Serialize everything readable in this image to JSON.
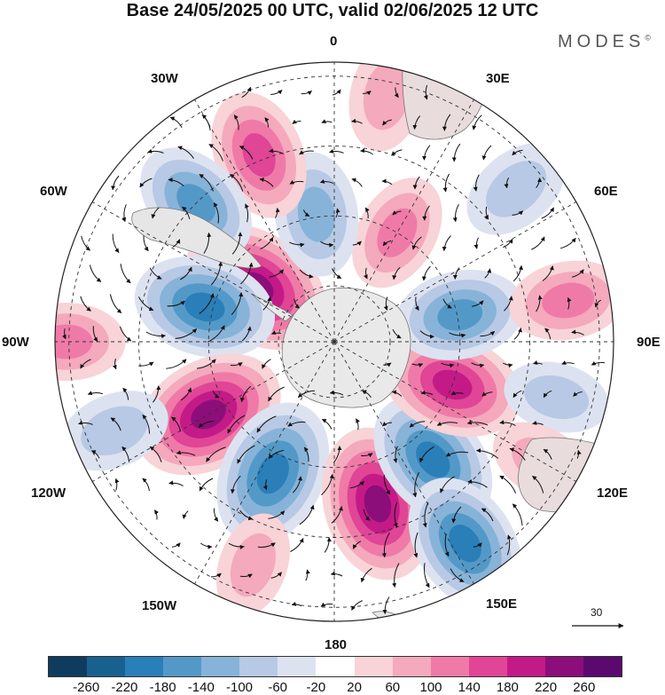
{
  "title": "Base 24/05/2025 00 UTC, valid 02/06/2025 12 UTC",
  "brand": "MODES",
  "brand_mark": "©",
  "meridian_labels": {
    "m0": "0",
    "m30e": "30E",
    "m60e": "60E",
    "m90e": "90E",
    "m120e": "120E",
    "m150e": "150E",
    "m180": "180",
    "m150w": "150W",
    "m120w": "120W",
    "m90w": "90W",
    "m60w": "60W",
    "m30w": "30W"
  },
  "vector_scale_label": "30",
  "colorbar": {
    "colors": [
      "#0f3b5f",
      "#18618f",
      "#2a7fb8",
      "#5399c8",
      "#87b3d8",
      "#b7c9e4",
      "#dde2f1",
      "#ffffff",
      "#f8d3d8",
      "#f4a9bc",
      "#ef7aa8",
      "#e04596",
      "#c31a87",
      "#8c0e7b",
      "#5a0a6e"
    ],
    "ticks": [
      "-260",
      "-220",
      "-180",
      "-140",
      "-100",
      "-60",
      "-20",
      "20",
      "60",
      "100",
      "140",
      "180",
      "220",
      "260"
    ]
  },
  "anomaly_centers": [
    {
      "value": 220,
      "bearing": 305,
      "dist": 0.34
    },
    {
      "value": -180,
      "bearing": 285,
      "dist": 0.48
    },
    {
      "value": 220,
      "bearing": 240,
      "dist": 0.52
    },
    {
      "value": -200,
      "bearing": 205,
      "dist": 0.52
    },
    {
      "value": 220,
      "bearing": 165,
      "dist": 0.6
    },
    {
      "value": -180,
      "bearing": 140,
      "dist": 0.55
    },
    {
      "value": 180,
      "bearing": 110,
      "dist": 0.45
    },
    {
      "value": -140,
      "bearing": 78,
      "dist": 0.46
    },
    {
      "value": -180,
      "bearing": 147,
      "dist": 0.86
    },
    {
      "value": 100,
      "bearing": 30,
      "dist": 0.45
    },
    {
      "value": -120,
      "bearing": 352,
      "dist": 0.46
    },
    {
      "value": 140,
      "bearing": 338,
      "dist": 0.72
    },
    {
      "value": -140,
      "bearing": 315,
      "dist": 0.7
    },
    {
      "value": 100,
      "bearing": 270,
      "dist": 0.96
    },
    {
      "value": 80,
      "bearing": 12,
      "dist": 0.9
    },
    {
      "value": -80,
      "bearing": 50,
      "dist": 0.85
    },
    {
      "value": 100,
      "bearing": 80,
      "dist": 0.85
    },
    {
      "value": -60,
      "bearing": 104,
      "dist": 0.82
    },
    {
      "value": 60,
      "bearing": 120,
      "dist": 0.86
    },
    {
      "value": 60,
      "bearing": 200,
      "dist": 0.85
    },
    {
      "value": -80,
      "bearing": 248,
      "dist": 0.85
    }
  ]
}
